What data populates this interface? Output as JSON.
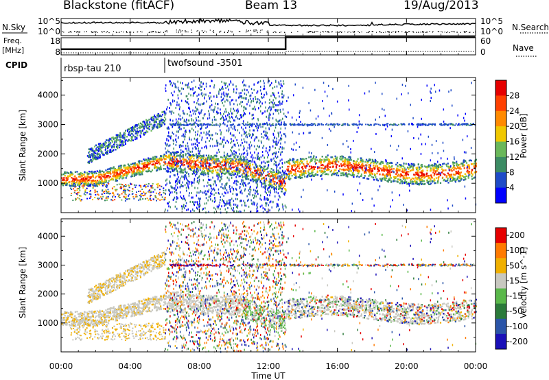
{
  "header": {
    "site": "Blackstone (fitACF)",
    "beam": "Beam 13",
    "date": "19/Aug/2013"
  },
  "chart_data": [
    {
      "type": "line",
      "name": "noise-panel",
      "left_label": "N.Sky",
      "right_label": "N.Search",
      "yticks": [
        "10^5",
        "10^0"
      ],
      "right_yticks": [
        "10^5",
        "10^0"
      ]
    },
    {
      "type": "line",
      "name": "frequency-panel",
      "left_label": "Freq.",
      "left_unit": "[MHz]",
      "right_label": "Nave",
      "yticks": [
        "18",
        "8"
      ],
      "right_yticks": [
        "60",
        "0"
      ],
      "freq_steps": [
        {
          "from_hour": 0,
          "to_hour": 13,
          "level": 0.25
        },
        {
          "from_hour": 13,
          "to_hour": 24,
          "level": 0.75
        }
      ]
    },
    {
      "type": "table",
      "name": "cpid",
      "label": "CPID",
      "entries": [
        {
          "start_hour": 0,
          "text": "rbsp-tau 210"
        },
        {
          "start_hour": 6,
          "text": "twofsound -3501"
        }
      ]
    },
    {
      "type": "heatmap",
      "name": "power",
      "ylabel": "Slant Range [km]",
      "yticks": [
        1000,
        2000,
        3000,
        4000
      ],
      "ylim": [
        0,
        4600
      ],
      "colorbar_label": "Power [dB]",
      "colorbar_ticks": [
        4,
        8,
        12,
        16,
        20,
        24,
        28
      ],
      "colorbar_range": [
        0,
        32
      ],
      "colors": [
        "#0000ff",
        "#1e4bc8",
        "#3c8c64",
        "#6ab85a",
        "#f0c800",
        "#ff8a00",
        "#ff4000",
        "#e60000"
      ]
    },
    {
      "type": "heatmap",
      "name": "velocity",
      "ylabel": "Slant Range [km]",
      "yticks": [
        1000,
        2000,
        3000,
        4000
      ],
      "ylim": [
        0,
        4600
      ],
      "colorbar_label": "Velocity [m s^-1]",
      "colorbar_ticks": [
        "200",
        "100",
        "50",
        "15",
        "-15",
        "-50",
        "-100",
        "-200"
      ],
      "colors": [
        "#1a10b8",
        "#2b55a8",
        "#2b7a3a",
        "#5ab84a",
        "#c8c8c0",
        "#f0b000",
        "#ff7a00",
        "#e60000"
      ]
    }
  ],
  "xaxis": {
    "label": "Time UT",
    "ticks": [
      "00:00",
      "04:00",
      "08:00",
      "12:00",
      "16:00",
      "20:00",
      "00:00"
    ],
    "range_hours": [
      0,
      24
    ]
  }
}
